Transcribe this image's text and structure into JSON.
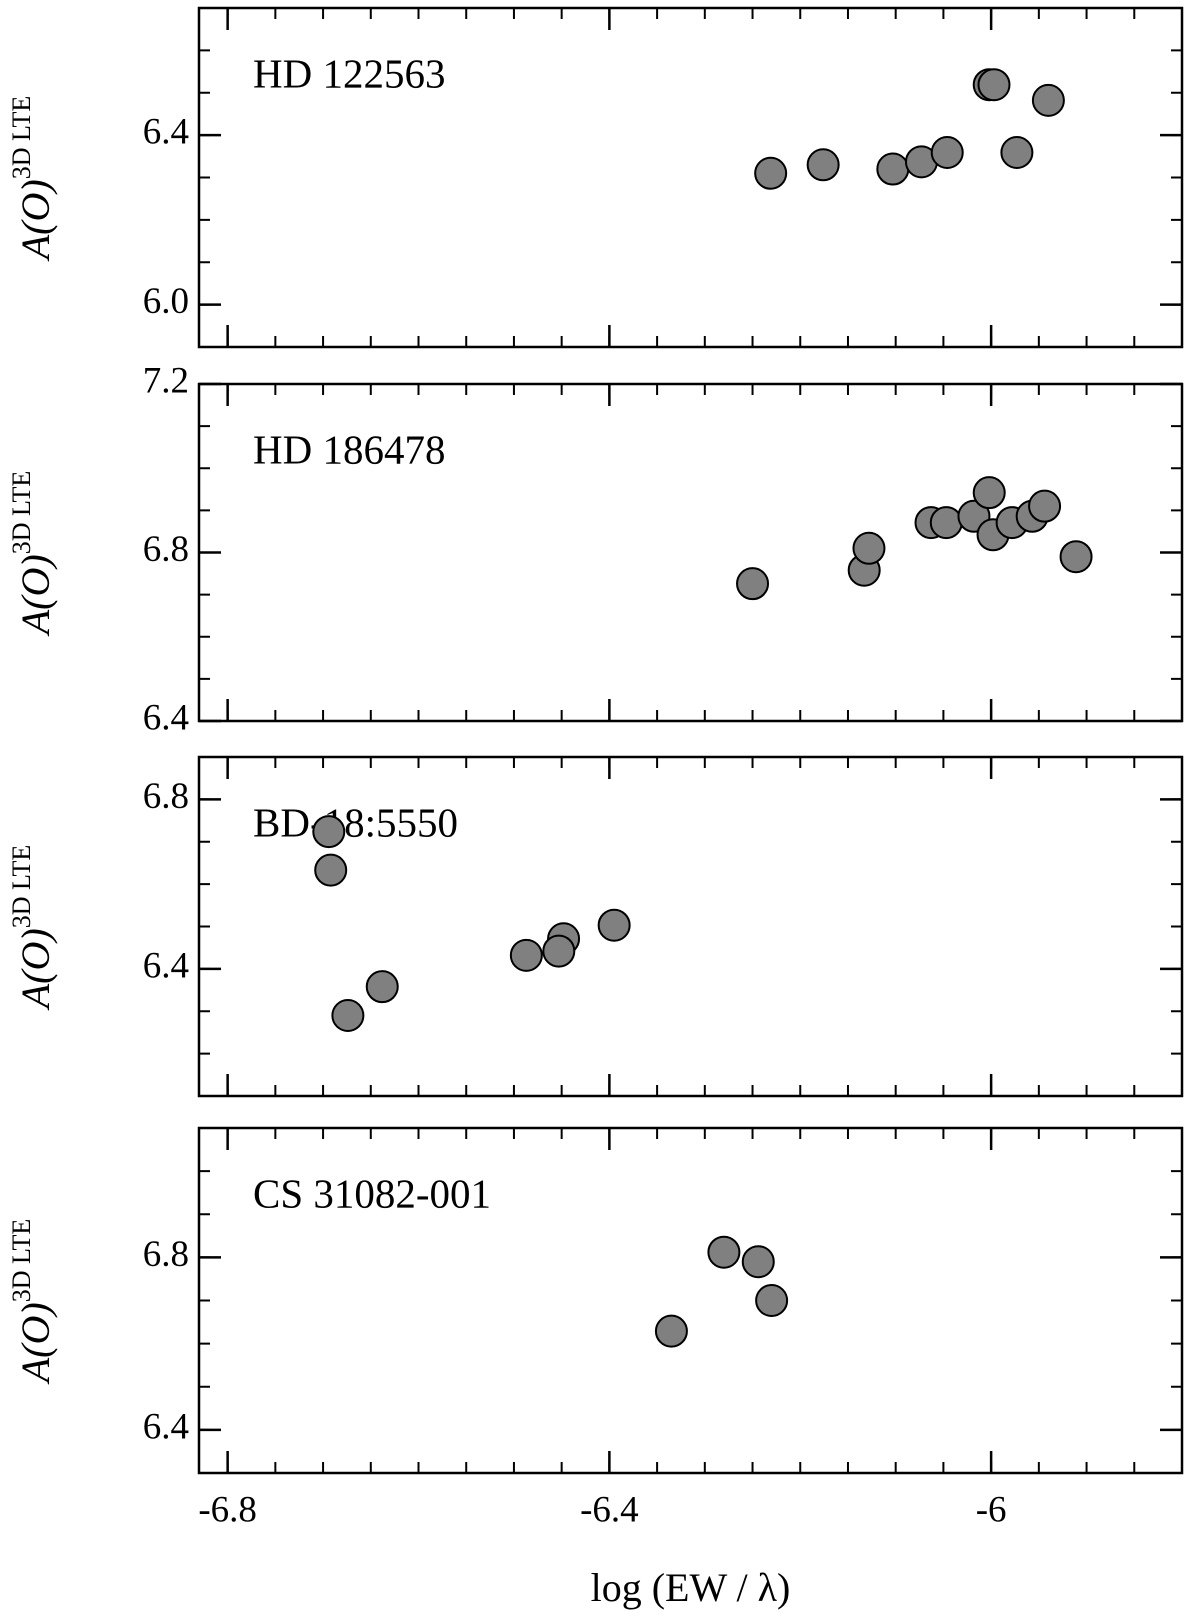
{
  "chart_data": [
    {
      "type": "scatter",
      "annotation": "HD 122563",
      "ylabel": "A(O)",
      "ylabel_sup": "3D LTE",
      "color": "#808080",
      "xlim": [
        -6.83,
        -5.8
      ],
      "xticks": [
        -6.8,
        -6.4,
        -6.0
      ],
      "ylim": [
        5.9,
        6.7
      ],
      "yticks": [
        6.0,
        6.4
      ],
      "x": [
        -6.231,
        -6.176,
        -6.103,
        -6.073,
        -6.046,
        -6.002,
        -5.997,
        -5.973,
        -5.94
      ],
      "values": [
        6.31,
        6.33,
        6.32,
        6.337,
        6.359,
        6.519,
        6.519,
        6.359,
        6.482
      ]
    },
    {
      "type": "scatter",
      "annotation": "HD 186478",
      "ylabel": "A(O)",
      "ylabel_sup": "3D LTE",
      "color": "#808080",
      "xlim": [
        -6.83,
        -5.8
      ],
      "xticks": [
        -6.8,
        -6.4,
        -6.0
      ],
      "ylim": [
        6.4,
        7.2
      ],
      "yticks": [
        6.4,
        6.8,
        7.2
      ],
      "x": [
        -6.25,
        -6.133,
        -6.128,
        -6.063,
        -6.047,
        -6.018,
        -6.002,
        -5.998,
        -5.978,
        -5.957,
        -5.944,
        -5.911
      ],
      "values": [
        6.726,
        6.758,
        6.81,
        6.871,
        6.871,
        6.886,
        6.942,
        6.842,
        6.871,
        6.886,
        6.91,
        6.79
      ]
    },
    {
      "type": "scatter",
      "annotation": "BD-18:5550",
      "ylabel": "A(O)",
      "ylabel_sup": "3D LTE",
      "color": "#808080",
      "xlim": [
        -6.83,
        -5.8
      ],
      "xticks": [
        -6.8,
        -6.4,
        -6.0
      ],
      "ylim": [
        6.1,
        6.9
      ],
      "yticks": [
        6.4,
        6.8
      ],
      "x": [
        -6.694,
        -6.692,
        -6.674,
        -6.638,
        -6.487,
        -6.448,
        -6.453,
        -6.395
      ],
      "values": [
        6.724,
        6.633,
        6.29,
        6.358,
        6.432,
        6.471,
        6.442,
        6.503
      ]
    },
    {
      "type": "scatter",
      "annotation": "CS 31082-001",
      "ylabel": "A(O)",
      "ylabel_sup": "3D LTE",
      "color": "#808080",
      "xlim": [
        -6.83,
        -5.8
      ],
      "xticks": [
        -6.8,
        -6.4,
        -6.0
      ],
      "ylim": [
        6.3,
        7.1
      ],
      "yticks": [
        6.4,
        6.8
      ],
      "xlabel": "log (EW / λ)",
      "x": [
        -6.335,
        -6.28,
        -6.244,
        -6.23
      ],
      "values": [
        6.629,
        6.812,
        6.79,
        6.7
      ]
    }
  ]
}
